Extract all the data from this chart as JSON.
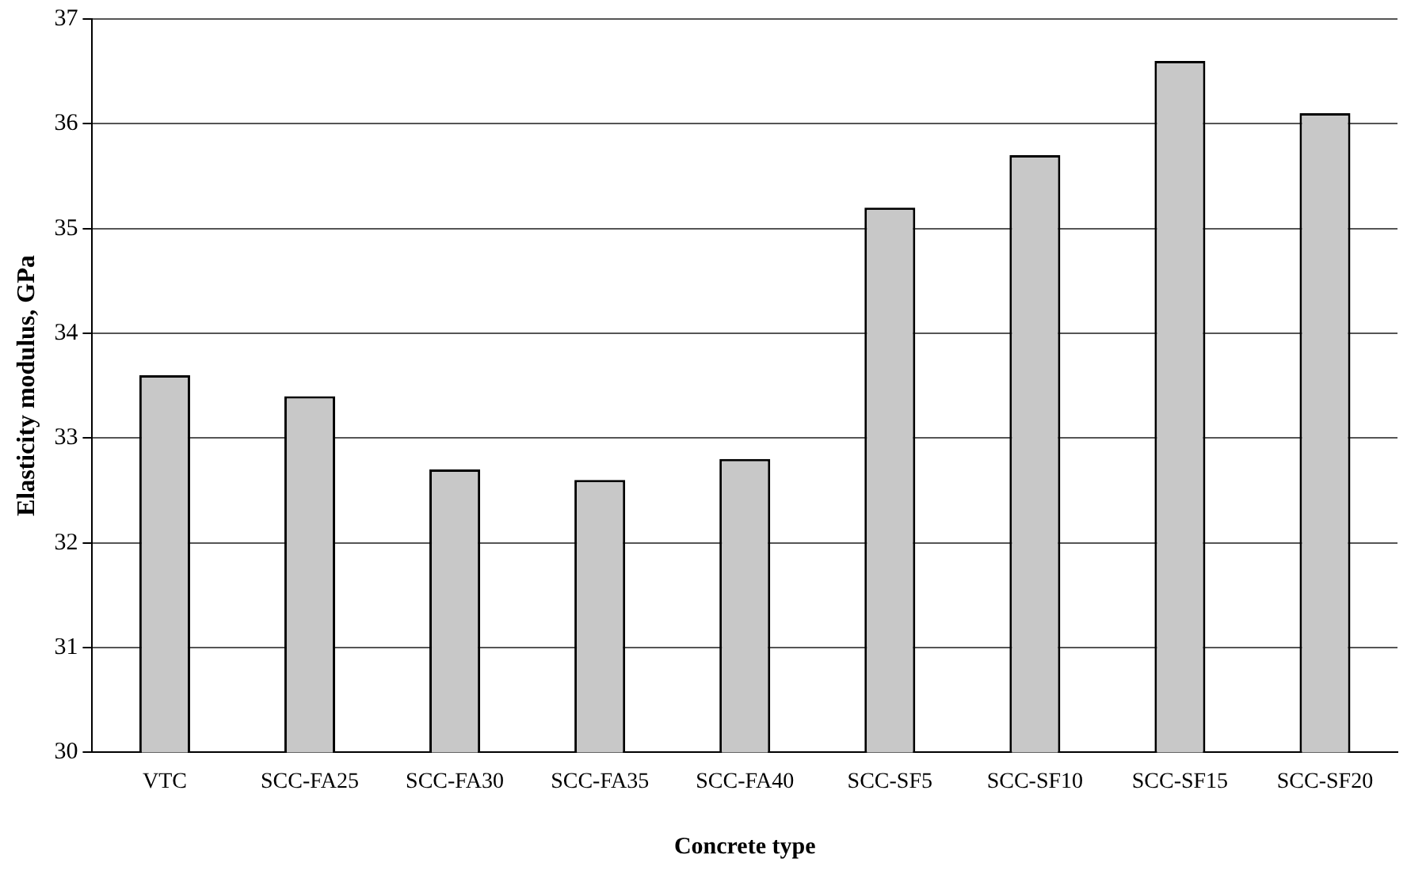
{
  "chart_data": {
    "type": "bar",
    "xlabel": "Concrete type",
    "ylabel": "Elasticity modulus, GPa",
    "categories": [
      "VTC",
      "SCC-FA25",
      "SCC-FA30",
      "SCC-FA35",
      "SCC-FA40",
      "SCC-SF5",
      "SCC-SF10",
      "SCC-SF15",
      "SCC-SF20"
    ],
    "values": [
      33.6,
      33.4,
      32.7,
      32.6,
      32.8,
      35.2,
      35.7,
      36.6,
      36.1
    ],
    "color": "#c8c8c8",
    "ylim": [
      30,
      37
    ],
    "yticks": [
      30,
      31,
      32,
      33,
      34,
      35,
      36,
      37
    ],
    "grid": "y",
    "legend": false
  }
}
